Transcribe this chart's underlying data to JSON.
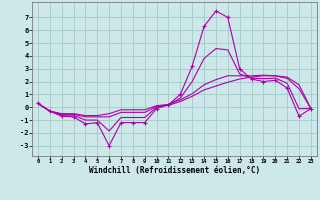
{
  "xlabel": "Windchill (Refroidissement éolien,°C)",
  "background_color": "#cce8e8",
  "grid_color": "#aacccc",
  "line_color": "#aa00aa",
  "x_ticks": [
    0,
    1,
    2,
    3,
    4,
    5,
    6,
    7,
    8,
    9,
    10,
    11,
    12,
    13,
    14,
    15,
    16,
    17,
    18,
    19,
    20,
    21,
    22,
    23
  ],
  "y_ticks": [
    -3,
    -2,
    -1,
    0,
    1,
    2,
    3,
    4,
    5,
    6,
    7
  ],
  "xlim": [
    -0.5,
    23.5
  ],
  "ylim": [
    -3.8,
    8.2
  ],
  "series": [
    {
      "x": [
        0,
        1,
        2,
        3,
        4,
        5,
        6,
        7,
        8,
        9,
        10,
        11,
        12,
        13,
        14,
        15,
        16,
        17,
        18,
        19,
        20,
        21,
        22,
        23
      ],
      "y": [
        0.3,
        -0.3,
        -0.7,
        -0.75,
        -1.3,
        -1.2,
        -3.0,
        -1.2,
        -1.2,
        -1.2,
        -0.1,
        0.2,
        1.0,
        3.2,
        6.3,
        7.5,
        7.0,
        3.0,
        2.2,
        2.0,
        2.1,
        1.5,
        -0.7,
        -0.1
      ],
      "marker": "+"
    },
    {
      "x": [
        0,
        1,
        2,
        3,
        4,
        5,
        6,
        7,
        8,
        9,
        10,
        11,
        12,
        13,
        14,
        15,
        16,
        17,
        18,
        19,
        20,
        21,
        22,
        23
      ],
      "y": [
        0.3,
        -0.3,
        -0.55,
        -0.55,
        -0.75,
        -0.75,
        -0.75,
        -0.4,
        -0.4,
        -0.4,
        0.05,
        0.15,
        0.45,
        0.85,
        1.35,
        1.65,
        1.95,
        2.2,
        2.35,
        2.45,
        2.45,
        2.25,
        1.45,
        -0.1
      ],
      "marker": null
    },
    {
      "x": [
        0,
        1,
        2,
        3,
        4,
        5,
        6,
        7,
        8,
        9,
        10,
        11,
        12,
        13,
        14,
        15,
        16,
        17,
        18,
        19,
        20,
        21,
        22,
        23
      ],
      "y": [
        0.3,
        -0.3,
        -0.62,
        -0.62,
        -1.0,
        -1.0,
        -1.85,
        -0.8,
        -0.8,
        -0.8,
        0.0,
        0.18,
        0.72,
        2.0,
        3.8,
        4.57,
        4.47,
        2.6,
        2.27,
        2.22,
        2.27,
        1.87,
        -0.12,
        -0.1
      ],
      "marker": null
    },
    {
      "x": [
        0,
        1,
        2,
        3,
        4,
        5,
        6,
        7,
        8,
        9,
        10,
        11,
        12,
        13,
        14,
        15,
        16,
        17,
        18,
        19,
        20,
        21,
        22,
        23
      ],
      "y": [
        0.3,
        -0.3,
        -0.5,
        -0.5,
        -0.65,
        -0.65,
        -0.5,
        -0.2,
        -0.2,
        -0.2,
        0.12,
        0.22,
        0.58,
        1.05,
        1.75,
        2.15,
        2.45,
        2.45,
        2.45,
        2.5,
        2.45,
        2.35,
        1.75,
        -0.1
      ],
      "marker": null
    }
  ]
}
